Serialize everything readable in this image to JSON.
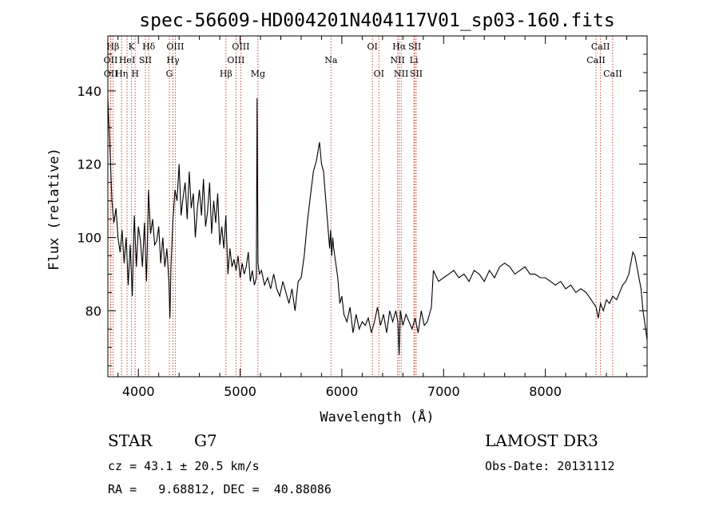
{
  "chart_data": {
    "type": "line",
    "title": "spec-56609-HD004201N404117V01_sp03-160.fits",
    "xlabel": "Wavelength (Å)",
    "ylabel": "Flux (relative)",
    "xlim": [
      3700,
      9000
    ],
    "ylim": [
      62,
      155
    ],
    "x_ticks": [
      4000,
      5000,
      6000,
      7000,
      8000
    ],
    "y_ticks": [
      80,
      100,
      120,
      140
    ],
    "grid": false,
    "legend": "none",
    "series": [
      {
        "x": [
          3700,
          3720,
          3740,
          3760,
          3780,
          3800,
          3820,
          3840,
          3860,
          3880,
          3900,
          3920,
          3940,
          3960,
          3980,
          4000,
          4020,
          4040,
          4060,
          4080,
          4100,
          4120,
          4140,
          4160,
          4180,
          4200,
          4220,
          4240,
          4260,
          4280,
          4300,
          4310,
          4320,
          4340,
          4360,
          4380,
          4400,
          4420,
          4440,
          4460,
          4480,
          4500,
          4520,
          4540,
          4560,
          4580,
          4600,
          4620,
          4640,
          4660,
          4680,
          4700,
          4720,
          4740,
          4760,
          4780,
          4800,
          4820,
          4840,
          4860,
          4880,
          4900,
          4920,
          4940,
          4960,
          4980,
          5000,
          5020,
          5040,
          5060,
          5080,
          5100,
          5120,
          5140,
          5160,
          5167,
          5175,
          5190,
          5210,
          5240,
          5270,
          5300,
          5330,
          5360,
          5390,
          5420,
          5450,
          5480,
          5510,
          5540,
          5570,
          5600,
          5630,
          5660,
          5690,
          5720,
          5750,
          5780,
          5800,
          5820,
          5840,
          5860,
          5880,
          5890,
          5900,
          5910,
          5920,
          5940,
          5960,
          5980,
          6000,
          6020,
          6050,
          6080,
          6110,
          6140,
          6170,
          6200,
          6230,
          6260,
          6290,
          6320,
          6350,
          6380,
          6410,
          6440,
          6470,
          6500,
          6530,
          6550,
          6563,
          6575,
          6600,
          6630,
          6660,
          6690,
          6720,
          6750,
          6780,
          6810,
          6840,
          6860,
          6880,
          6900,
          6950,
          7000,
          7050,
          7100,
          7150,
          7200,
          7250,
          7300,
          7350,
          7400,
          7450,
          7500,
          7550,
          7600,
          7650,
          7700,
          7750,
          7800,
          7850,
          7900,
          7950,
          8000,
          8050,
          8100,
          8150,
          8200,
          8250,
          8300,
          8350,
          8400,
          8450,
          8498,
          8520,
          8542,
          8570,
          8600,
          8630,
          8662,
          8700,
          8730,
          8760,
          8790,
          8820,
          8840,
          8860,
          8880,
          8900,
          8920,
          8940,
          8960,
          8980,
          9000
        ],
        "y": [
          138,
          125,
          110,
          104,
          108,
          100,
          96,
          102,
          93,
          100,
          87,
          98,
          84,
          106,
          92,
          103,
          99,
          92,
          104,
          88,
          113,
          101,
          105,
          98,
          99,
          103,
          93,
          100,
          92,
          97,
          88,
          78,
          92,
          105,
          113,
          110,
          120,
          106,
          111,
          115,
          105,
          118,
          108,
          112,
          100,
          108,
          113,
          106,
          116,
          103,
          107,
          115,
          101,
          110,
          104,
          112,
          98,
          103,
          97,
          106,
          90,
          97,
          92,
          94,
          91,
          95,
          89,
          93,
          90,
          92,
          96,
          88,
          91,
          87,
          89,
          138,
          93,
          90,
          91,
          87,
          89,
          86,
          90,
          86,
          84,
          88,
          85,
          82,
          86,
          80,
          88,
          89,
          95,
          104,
          111,
          118,
          121,
          126,
          120,
          118,
          111,
          104,
          97,
          102,
          95,
          100,
          97,
          93,
          89,
          82,
          84,
          79,
          77,
          81,
          74,
          79,
          75,
          77,
          76,
          78,
          74,
          77,
          81,
          76,
          79,
          74,
          80,
          77,
          80,
          77,
          68,
          80,
          76,
          79,
          77,
          75,
          78,
          74,
          80,
          76,
          77,
          79,
          81,
          91,
          88,
          89,
          90,
          91,
          89,
          90,
          88,
          91,
          90,
          88,
          91,
          89,
          92,
          93,
          92,
          90,
          91,
          92,
          90,
          90,
          89,
          89,
          88,
          87,
          88,
          86,
          87,
          85,
          86,
          85,
          83,
          81,
          78,
          82,
          80,
          83,
          82,
          84,
          83,
          85,
          87,
          88,
          90,
          93,
          96,
          95,
          92,
          89,
          86,
          80,
          76,
          72
        ]
      }
    ],
    "line_markers": [
      {
        "label": "Hβ",
        "x": 3750,
        "row": 1
      },
      {
        "label": "OII",
        "x": 3727,
        "row": 2
      },
      {
        "label": "OII",
        "x": 3729,
        "row": 3
      },
      {
        "label": "K",
        "x": 3933,
        "row": 1
      },
      {
        "label": "HeI",
        "x": 3889,
        "row": 2
      },
      {
        "label": "Hη",
        "x": 3835,
        "row": 3
      },
      {
        "label": "H",
        "x": 3968,
        "row": 3
      },
      {
        "label": "SII",
        "x": 4069,
        "row": 2
      },
      {
        "label": "Hδ",
        "x": 4102,
        "row": 1
      },
      {
        "label": "OIII",
        "x": 4363,
        "row": 1
      },
      {
        "label": "Hγ",
        "x": 4340,
        "row": 2
      },
      {
        "label": "G",
        "x": 4305,
        "row": 3
      },
      {
        "label": "Hβ",
        "x": 4861,
        "row": 3
      },
      {
        "label": "OIII",
        "x": 5007,
        "row": 1
      },
      {
        "label": "OIII",
        "x": 4959,
        "row": 2
      },
      {
        "label": "Mg",
        "x": 5175,
        "row": 3
      },
      {
        "label": "Na",
        "x": 5893,
        "row": 2
      },
      {
        "label": "OI",
        "x": 6300,
        "row": 1
      },
      {
        "label": "OI",
        "x": 6364,
        "row": 3
      },
      {
        "label": "Hα",
        "x": 6563,
        "row": 1
      },
      {
        "label": "NII",
        "x": 6548,
        "row": 2
      },
      {
        "label": "NII",
        "x": 6583,
        "row": 3
      },
      {
        "label": "SII",
        "x": 6716,
        "row": 1
      },
      {
        "label": "Li",
        "x": 6708,
        "row": 2
      },
      {
        "label": "SII",
        "x": 6731,
        "row": 3
      },
      {
        "label": "CaII",
        "x": 8542,
        "row": 1
      },
      {
        "label": "CaII",
        "x": 8498,
        "row": 2
      },
      {
        "label": "CaII",
        "x": 8662,
        "row": 3
      }
    ]
  },
  "info": {
    "object_class": "STAR",
    "subclass": "G7",
    "survey": "LAMOST DR3",
    "cz": "cz = 43.1 ± 20.5 km/s",
    "obs_date": "Obs-Date: 20131112",
    "coords": "RA =   9.68812, DEC =  40.88086"
  },
  "colors": {
    "axis": "#000000",
    "spectrum": "#000000",
    "marker_line": "#c0392b"
  }
}
